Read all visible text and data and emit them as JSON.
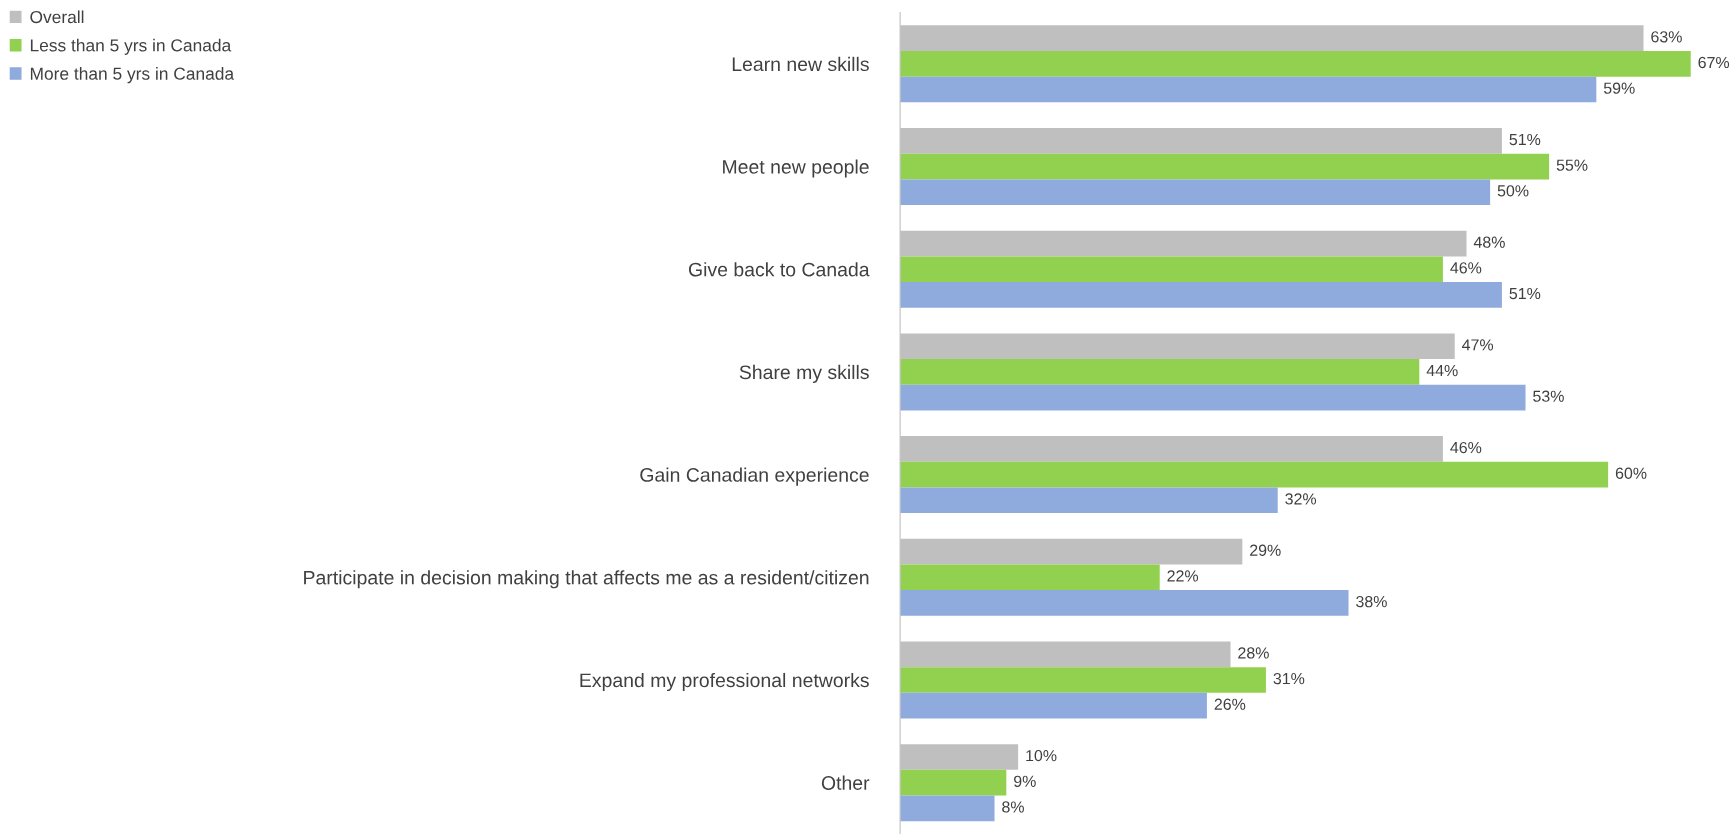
{
  "chart_data": {
    "type": "bar",
    "orientation": "horizontal",
    "legend": "top left",
    "grid": false,
    "categories": [
      "Learn new skills",
      "Meet new people",
      "Give back to Canada",
      "Share my skills",
      "Gain Canadian experience",
      "Participate in decision making that affects me as a resident/citizen",
      "Expand my professional networks",
      "Other"
    ],
    "series": [
      {
        "name": "Overall",
        "color": "#bfbfbf",
        "values": [
          63,
          51,
          48,
          47,
          46,
          29,
          28,
          10
        ],
        "value_labels": [
          "63%",
          "51%",
          "48%",
          "47%",
          "46%",
          "29%",
          "28%",
          "10%"
        ]
      },
      {
        "name": "Less than 5 yrs in Canada",
        "color": "#92d050",
        "values": [
          67,
          55,
          46,
          44,
          60,
          22,
          31,
          9
        ],
        "value_labels": [
          "67%",
          "55%",
          "46%",
          "44%",
          "60%",
          "22%",
          "31%",
          "9%"
        ]
      },
      {
        "name": "More than 5 yrs in Canada",
        "color": "#8faadc",
        "values": [
          59,
          50,
          51,
          53,
          32,
          38,
          26,
          8
        ],
        "value_labels": [
          "59%",
          "50%",
          "51%",
          "53%",
          "32%",
          "38%",
          "26%",
          "8%"
        ]
      }
    ]
  }
}
